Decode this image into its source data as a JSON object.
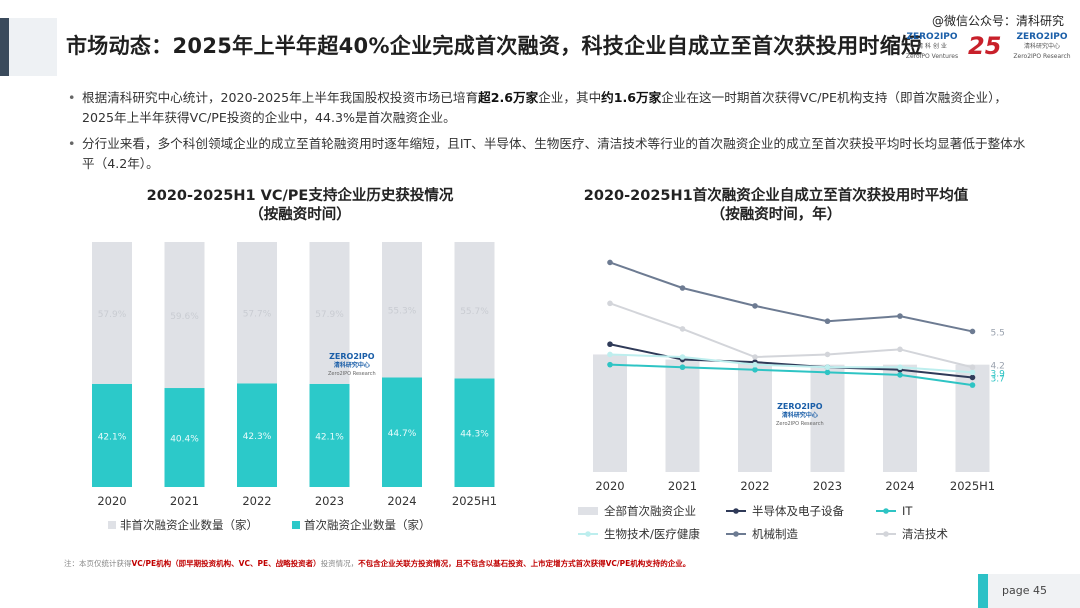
{
  "header": {
    "title": "市场动态：2025年上半年超40%企业完成首次融资，科技企业自成立至首次获投用时缩短",
    "watermark": "@微信公众号：清科研究",
    "logo1": "ZERO2IPO",
    "logo1_sub": "清 科 创 业",
    "logo1_sub2": "ZeroIPO Ventures",
    "logo2": "25",
    "logo3": "ZERO2IPO",
    "logo3_sub": "清科研究中心",
    "logo3_sub2": "Zero2IPO Research"
  },
  "bullets": [
    {
      "pre": "根据清科研究中心统计，2020-2025年上半年我国股权投资市场已培育",
      "b1": "超2.6万家",
      "mid": "企业，其中",
      "b2": "约1.6万家",
      "post": "企业在这一时期首次获得VC/PE机构支持（即首次融资企业），2025年上半年获得VC/PE投资的企业中，44.3%是首次融资企业。"
    },
    {
      "text": "分行业来看，多个科创领域企业的成立至首轮融资用时逐年缩短，且IT、半导体、生物医疗、清洁技术等行业的首次融资企业的成立至首次获投平均时长均显著低于整体水平（4.2年）。"
    }
  ],
  "chart_data": [
    {
      "type": "bar",
      "stacked": true,
      "title": "2020-2025H1 VC/PE支持企业历史获投情况",
      "subtitle": "（按融资时间）",
      "categories": [
        "2020",
        "2021",
        "2022",
        "2023",
        "2024",
        "2025H1"
      ],
      "series": [
        {
          "name": "非首次融资企业数量（家）",
          "color": "#dfe1e6",
          "values": [
            57.9,
            59.6,
            57.7,
            57.9,
            55.3,
            55.7
          ],
          "labels": [
            "57.9%",
            "59.6%",
            "57.7%",
            "57.9%",
            "55.3%",
            "55.7%"
          ]
        },
        {
          "name": "首次融资企业数量（家）",
          "color": "#2cc9c9",
          "values": [
            42.1,
            40.4,
            42.3,
            42.1,
            44.7,
            44.3
          ],
          "labels": [
            "42.1%",
            "40.4%",
            "42.3%",
            "42.1%",
            "44.7%",
            "44.3%"
          ]
        }
      ],
      "ylim": [
        0,
        100
      ],
      "legend_position": "bottom"
    },
    {
      "type": "line",
      "title": "2020-2025H1首次融资企业自成立至首次获投用时平均值",
      "subtitle": "（按融资时间，年）",
      "categories": [
        "2020",
        "2021",
        "2022",
        "2023",
        "2024",
        "2025H1"
      ],
      "bars": {
        "name": "全部首次融资企业",
        "color": "#dfe1e6",
        "values": [
          4.6,
          4.4,
          4.3,
          4.2,
          4.2,
          4.2
        ]
      },
      "series": [
        {
          "name": "半导体及电子设备",
          "color": "#2f3a58",
          "values": [
            5.0,
            4.4,
            4.3,
            4.1,
            4.0,
            3.7
          ]
        },
        {
          "name": "IT",
          "color": "#2ec4c4",
          "values": [
            4.2,
            4.1,
            4.0,
            3.9,
            3.8,
            3.4
          ]
        },
        {
          "name": "生物技术/医疗健康",
          "color": "#bdeeee",
          "values": [
            4.6,
            4.5,
            4.2,
            4.1,
            4.1,
            3.9
          ]
        },
        {
          "name": "机械制造",
          "color": "#6d7b92",
          "values": [
            8.2,
            7.2,
            6.5,
            5.9,
            6.1,
            5.5
          ]
        },
        {
          "name": "清洁技术",
          "color": "#d3d5da",
          "values": [
            6.6,
            5.6,
            4.5,
            4.6,
            4.8,
            4.1
          ]
        }
      ],
      "end_labels": [
        "5.5",
        "3.9",
        "4.2",
        "3.7"
      ],
      "ylim": [
        0,
        9
      ],
      "legend_position": "bottom"
    }
  ],
  "center_logo": {
    "main": "ZERO2IPO",
    "sub": "清科研究中心",
    "sub2": "Zero2IPO Research"
  },
  "footnote": {
    "prefix": "注：本页仅统计获得",
    "r1": "VC/PE机构（即早期投资机构、VC、PE、战略投资者）",
    "mid": "投资情况，",
    "r2": "不包含企业关联方投资情况，且不包含以基石投资、上市定增方式首次获得VC/PE机构支持的企业。"
  },
  "page": {
    "label": "page  45"
  }
}
